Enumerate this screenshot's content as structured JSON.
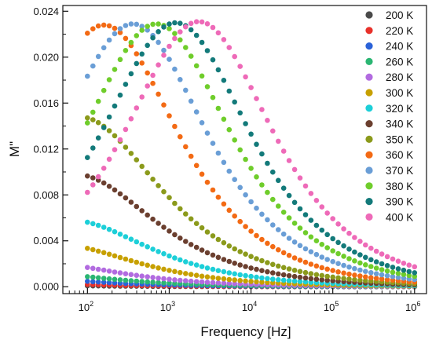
{
  "chart_data": {
    "type": "scatter",
    "title": "",
    "xlabel": "Frequency [Hz]",
    "ylabel": "M\"",
    "x_scale": "log",
    "xlim": [
      50,
      1400000
    ],
    "ylim": [
      -0.0006,
      0.0245
    ],
    "x_ticks": [
      {
        "value": 100,
        "base": "10",
        "exp": "2"
      },
      {
        "value": 1000,
        "base": "10",
        "exp": "3"
      },
      {
        "value": 10000,
        "base": "10",
        "exp": "4"
      },
      {
        "value": 100000,
        "base": "10",
        "exp": "5"
      },
      {
        "value": 1000000,
        "base": "10",
        "exp": "6"
      }
    ],
    "y_ticks": [
      "0.000",
      "0.004",
      "0.008",
      "0.012",
      "0.016",
      "0.020",
      "0.024"
    ],
    "legend_position": "right",
    "grid": false,
    "points_per_decade": 15,
    "series": [
      {
        "name": "200 K",
        "color": "#4a4a4a",
        "peak_freq": 1,
        "peak_value": 0.0004,
        "spread": 2.0
      },
      {
        "name": "220 K",
        "color": "#e8312a",
        "peak_freq": 3,
        "peak_value": 0.0006,
        "spread": 2.0
      },
      {
        "name": "240 K",
        "color": "#2a62d8",
        "peak_freq": 8,
        "peak_value": 0.0009,
        "spread": 2.0
      },
      {
        "name": "260 K",
        "color": "#2bb673",
        "peak_freq": 15,
        "peak_value": 0.0013,
        "spread": 2.0
      },
      {
        "name": "280 K",
        "color": "#b26be0",
        "peak_freq": 25,
        "peak_value": 0.0021,
        "spread": 2.0
      },
      {
        "name": "300 K",
        "color": "#c7a000",
        "peak_freq": 40,
        "peak_value": 0.0037,
        "spread": 2.0
      },
      {
        "name": "320 K",
        "color": "#1ccfd8",
        "peak_freq": 60,
        "peak_value": 0.0058,
        "spread": 2.0
      },
      {
        "name": "340 K",
        "color": "#6b3f2f",
        "peak_freq": 70,
        "peak_value": 0.0098,
        "spread": 2.0
      },
      {
        "name": "350 K",
        "color": "#8b9a1b",
        "peak_freq": 80,
        "peak_value": 0.0148,
        "spread": 2.0
      },
      {
        "name": "360 K",
        "color": "#f36a14",
        "peak_freq": 160,
        "peak_value": 0.0228,
        "spread": 1.85
      },
      {
        "name": "370 K",
        "color": "#6a9ed6",
        "peak_freq": 360,
        "peak_value": 0.0229,
        "spread": 1.85
      },
      {
        "name": "380 K",
        "color": "#6fcd2b",
        "peak_freq": 700,
        "peak_value": 0.0229,
        "spread": 1.85
      },
      {
        "name": "390 K",
        "color": "#137a7a",
        "peak_freq": 1200,
        "peak_value": 0.023,
        "spread": 1.85
      },
      {
        "name": "400 K",
        "color": "#ee6ab8",
        "peak_freq": 2300,
        "peak_value": 0.0231,
        "spread": 1.85
      }
    ]
  }
}
